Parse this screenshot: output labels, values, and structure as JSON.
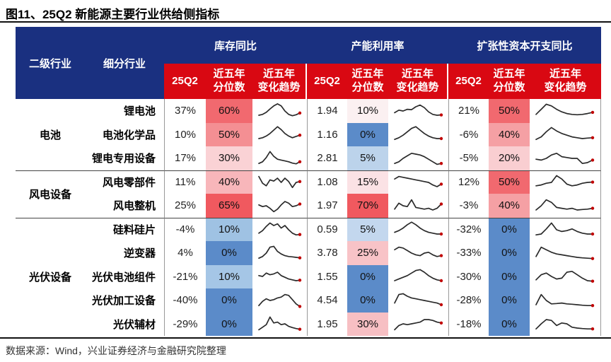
{
  "title": "图11、25Q2 新能源主要行业供给侧指标",
  "source_note": "数据来源：Wind，兴业证券经济与金融研究院整理",
  "colors": {
    "header_blue": "#1A3080",
    "header_red": "#D90812",
    "percentile_high_red": "#F0595F",
    "percentile_low_blue": "#5B8BC9",
    "sparkline_stroke": "#2a2a2a",
    "sparkline_endpoint": "#c00000"
  },
  "chart_data": {
    "type": "table",
    "title": "图11、25Q2 新能源主要行业供给侧指标",
    "industry_col": "二级行业",
    "sub_industry_col": "细分行业",
    "column_groups": [
      {
        "title": "库存同比",
        "key": "inventory"
      },
      {
        "title": "产能利用率",
        "key": "capacity"
      },
      {
        "title": "扩张性资本开支同比",
        "key": "capex"
      }
    ],
    "sub_columns": [
      "25Q2",
      "近五年分位数",
      "近五年变化趋势"
    ],
    "sub_columns_display": [
      "25Q2",
      "近五年\n分位数",
      "近五年\n变化趋势"
    ],
    "groups": [
      {
        "name": "电池",
        "rows": [
          {
            "name": "锂电池",
            "inventory": {
              "q2": "37%",
              "pct": "60%",
              "pct_bg": "#F1696F",
              "trend": [
                0.25,
                0.3,
                0.42,
                0.62,
                0.8,
                0.92,
                0.8,
                0.5,
                0.3,
                0.22,
                0.28,
                0.38
              ]
            },
            "capacity": {
              "q2": "1.94",
              "pct": "10%",
              "pct_bg": "#FBF0F1",
              "trend": [
                0.4,
                0.55,
                0.5,
                0.6,
                0.58,
                0.75,
                0.85,
                0.7,
                0.45,
                0.3,
                0.25,
                0.27
              ]
            },
            "capex": {
              "q2": "21%",
              "pct": "50%",
              "pct_bg": "#F1696F",
              "trend": [
                0.3,
                0.6,
                0.9,
                0.8,
                0.6,
                0.45,
                0.35,
                0.3,
                0.28,
                0.3,
                0.35,
                0.42
              ]
            }
          },
          {
            "name": "电池化学品",
            "inventory": {
              "q2": "10%",
              "pct": "50%",
              "pct_bg": "#F48F93",
              "trend": [
                0.25,
                0.3,
                0.4,
                0.55,
                0.75,
                0.95,
                0.78,
                0.55,
                0.4,
                0.3,
                0.38,
                0.45
              ]
            },
            "capacity": {
              "q2": "1.16",
              "pct": "0%",
              "pct_bg": "#5B8BC9",
              "trend": [
                0.2,
                0.3,
                0.45,
                0.65,
                0.85,
                0.95,
                0.75,
                0.55,
                0.4,
                0.3,
                0.25,
                0.25
              ]
            },
            "capex": {
              "q2": "-6%",
              "pct": "40%",
              "pct_bg": "#F5A0A4",
              "trend": [
                0.2,
                0.35,
                0.65,
                0.9,
                0.7,
                0.55,
                0.45,
                0.35,
                0.3,
                0.25,
                0.28,
                0.3
              ]
            }
          },
          {
            "name": "锂电专用设备",
            "inventory": {
              "q2": "17%",
              "pct": "30%",
              "pct_bg": "#FAD2D5",
              "trend": [
                0.2,
                0.3,
                0.55,
                0.9,
                0.62,
                0.45,
                0.4,
                0.35,
                0.3,
                0.22,
                0.18,
                0.3
              ]
            },
            "capacity": {
              "q2": "2.81",
              "pct": "5%",
              "pct_bg": "#BCD3EB",
              "trend": [
                0.2,
                0.3,
                0.5,
                0.65,
                0.8,
                0.75,
                0.7,
                0.6,
                0.45,
                0.3,
                0.15,
                0.2
              ]
            },
            "capex": {
              "q2": "-5%",
              "pct": "20%",
              "pct_bg": "#F9CED1",
              "trend": [
                0.45,
                0.4,
                0.5,
                0.7,
                0.8,
                0.6,
                0.55,
                0.5,
                0.5,
                0.2,
                0.25,
                0.4
              ]
            }
          }
        ]
      },
      {
        "name": "风电设备",
        "rows": [
          {
            "name": "风电零部件",
            "inventory": {
              "q2": "11%",
              "pct": "40%",
              "pct_bg": "#F8B6BA",
              "trend": [
                0.85,
                0.45,
                0.3,
                0.65,
                0.58,
                0.75,
                0.5,
                0.75,
                0.55,
                0.2,
                0.5,
                0.55
              ]
            },
            "capacity": {
              "q2": "1.08",
              "pct": "15%",
              "pct_bg": "#FBE2E5",
              "trend": [
                0.7,
                0.85,
                0.8,
                0.75,
                0.7,
                0.65,
                0.6,
                0.55,
                0.5,
                0.35,
                0.25,
                0.4
              ]
            },
            "capex": {
              "q2": "12%",
              "pct": "50%",
              "pct_bg": "#F1696F",
              "trend": [
                0.3,
                0.35,
                0.45,
                0.5,
                0.9,
                0.7,
                0.4,
                0.3,
                0.35,
                0.45,
                0.5,
                0.52
              ]
            }
          },
          {
            "name": "风电整机",
            "inventory": {
              "q2": "25%",
              "pct": "65%",
              "pct_bg": "#F0595F",
              "trend": [
                0.55,
                0.45,
                0.5,
                0.35,
                0.15,
                0.3,
                0.55,
                0.75,
                0.65,
                0.45,
                0.5,
                0.6
              ]
            },
            "capacity": {
              "q2": "1.97",
              "pct": "70%",
              "pct_bg": "#F0595F",
              "trend": [
                0.3,
                0.65,
                0.5,
                0.45,
                0.85,
                0.4,
                0.35,
                0.3,
                0.35,
                0.25,
                0.35,
                0.6
              ]
            },
            "capex": {
              "q2": "-3%",
              "pct": "40%",
              "pct_bg": "#F5A0A4",
              "trend": [
                0.25,
                0.5,
                0.85,
                0.7,
                0.4,
                0.35,
                0.3,
                0.35,
                0.25,
                0.28,
                0.3,
                0.35
              ]
            }
          }
        ]
      },
      {
        "name": "光伏设备",
        "rows": [
          {
            "name": "硅料硅片",
            "inventory": {
              "q2": "-4%",
              "pct": "10%",
              "pct_bg": "#9FC2E3",
              "trend": [
                0.3,
                0.45,
                0.7,
                0.9,
                0.75,
                0.85,
                0.6,
                0.75,
                0.5,
                0.3,
                0.2,
                0.22
              ]
            },
            "capacity": {
              "q2": "0.59",
              "pct": "5%",
              "pct_bg": "#C3D7EE",
              "trend": [
                0.35,
                0.45,
                0.6,
                0.8,
                0.95,
                0.8,
                0.6,
                0.45,
                0.35,
                0.3,
                0.25,
                0.25
              ]
            },
            "capex": {
              "q2": "-32%",
              "pct": "0%",
              "pct_bg": "#5B8BC9",
              "trend": [
                0.2,
                0.25,
                0.55,
                0.9,
                0.5,
                0.4,
                0.45,
                0.55,
                0.4,
                0.3,
                0.25,
                0.25
              ]
            }
          },
          {
            "name": "逆变器",
            "inventory": {
              "q2": "4%",
              "pct": "0%",
              "pct_bg": "#5B8BC9",
              "trend": [
                0.2,
                0.3,
                0.5,
                0.85,
                0.9,
                0.6,
                0.45,
                0.35,
                0.3,
                0.28,
                0.25,
                0.22
              ]
            },
            "capacity": {
              "q2": "3.78",
              "pct": "25%",
              "pct_bg": "#F8C3C7",
              "trend": [
                0.7,
                0.85,
                0.8,
                0.65,
                0.5,
                0.4,
                0.35,
                0.5,
                0.55,
                0.4,
                0.3,
                0.35
              ]
            },
            "capex": {
              "q2": "-33%",
              "pct": "0%",
              "pct_bg": "#5B8BC9",
              "trend": [
                0.3,
                0.85,
                0.7,
                0.55,
                0.45,
                0.4,
                0.35,
                0.3,
                0.25,
                0.22,
                0.2,
                0.18
              ]
            }
          },
          {
            "name": "光伏电池组件",
            "inventory": {
              "q2": "-21%",
              "pct": "10%",
              "pct_bg": "#A5C6E6",
              "trend": [
                0.55,
                0.5,
                0.7,
                0.6,
                0.65,
                0.75,
                0.55,
                0.45,
                0.35,
                0.3,
                0.25,
                0.28
              ]
            },
            "capacity": {
              "q2": "1.55",
              "pct": "0%",
              "pct_bg": "#5B8BC9",
              "trend": [
                0.25,
                0.35,
                0.45,
                0.55,
                0.7,
                0.85,
                0.9,
                0.75,
                0.55,
                0.4,
                0.3,
                0.25
              ]
            },
            "capex": {
              "q2": "-30%",
              "pct": "0%",
              "pct_bg": "#5B8BC9",
              "trend": [
                0.3,
                0.6,
                0.7,
                0.5,
                0.35,
                0.4,
                0.75,
                0.8,
                0.6,
                0.4,
                0.25,
                0.22
              ]
            }
          },
          {
            "name": "光伏加工设备",
            "inventory": {
              "q2": "-40%",
              "pct": "0%",
              "pct_bg": "#5B8BC9",
              "trend": [
                0.2,
                0.45,
                0.6,
                0.5,
                0.55,
                0.65,
                0.7,
                0.85,
                0.8,
                0.55,
                0.3,
                0.15
              ]
            },
            "capacity": {
              "q2": "4.54",
              "pct": "0%",
              "pct_bg": "#5B8BC9",
              "trend": [
                0.35,
                0.85,
                0.9,
                0.75,
                0.65,
                0.6,
                0.55,
                0.5,
                0.45,
                0.4,
                0.35,
                0.25
              ]
            },
            "capex": {
              "q2": "-28%",
              "pct": "0%",
              "pct_bg": "#5B8BC9",
              "trend": [
                0.25,
                0.85,
                0.5,
                0.3,
                0.32,
                0.35,
                0.3,
                0.28,
                0.25,
                0.22,
                0.2,
                0.2
              ]
            }
          },
          {
            "name": "光伏辅材",
            "inventory": {
              "q2": "-29%",
              "pct": "0%",
              "pct_bg": "#5B8BC9",
              "trend": [
                0.15,
                0.3,
                0.45,
                0.9,
                0.55,
                0.6,
                0.45,
                0.5,
                0.35,
                0.28,
                0.22,
                0.18
              ]
            },
            "capacity": {
              "q2": "1.95",
              "pct": "30%",
              "pct_bg": "#F7BFC3",
              "trend": [
                0.15,
                0.4,
                0.5,
                0.45,
                0.5,
                0.55,
                0.6,
                0.75,
                0.75,
                0.7,
                0.6,
                0.55
              ]
            },
            "capex": {
              "q2": "-18%",
              "pct": "0%",
              "pct_bg": "#5B8BC9",
              "trend": [
                0.2,
                0.5,
                0.75,
                0.7,
                0.4,
                0.55,
                0.5,
                0.3,
                0.25,
                0.22,
                0.2,
                0.2
              ]
            }
          }
        ]
      }
    ]
  }
}
